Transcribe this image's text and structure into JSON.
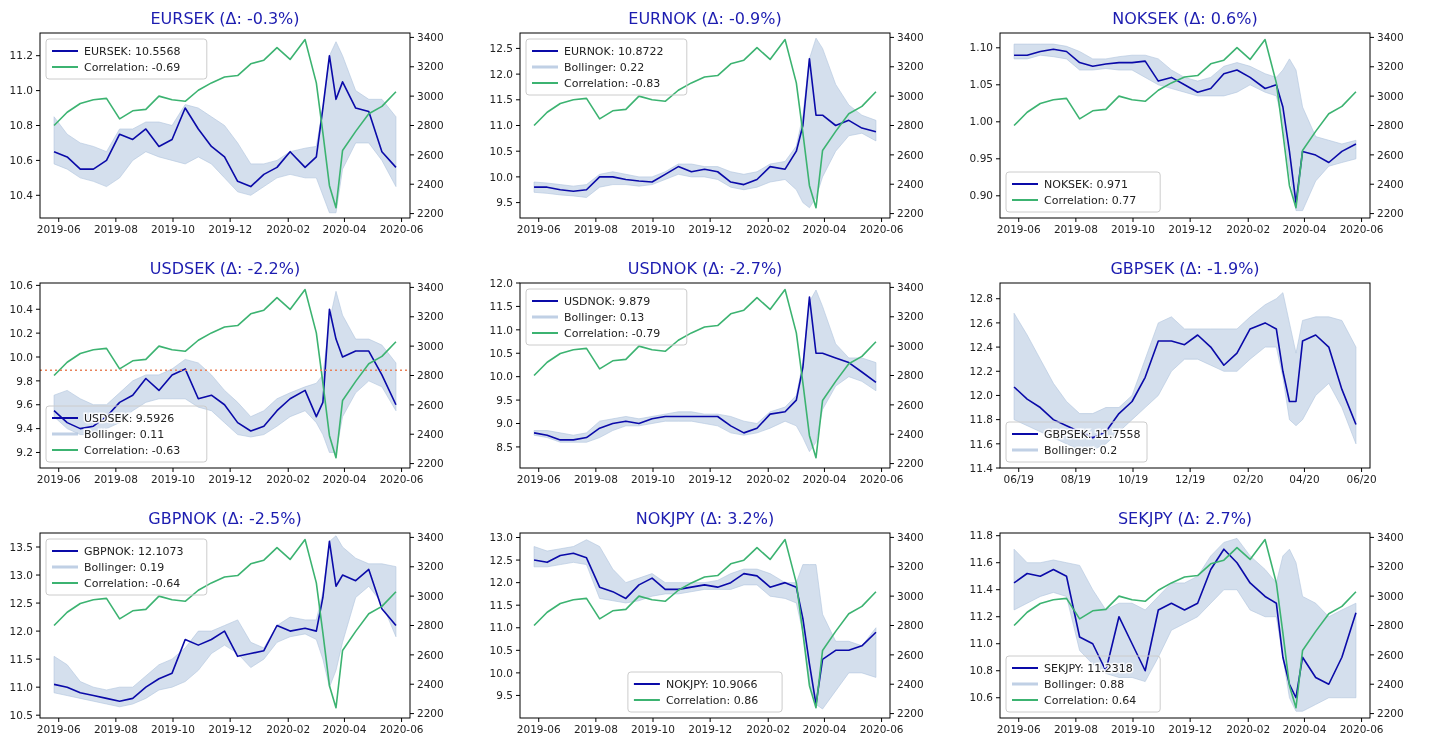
{
  "chart_data": [
    {
      "type": "line",
      "title": "EURSEK (Δ: -0.3%)",
      "legend": "upper left",
      "xlim": [
        "2019-05-12",
        "2020-06-10"
      ],
      "ylim": [
        10.27,
        11.33
      ],
      "yticks": [
        10.4,
        10.6,
        10.8,
        {
          "value": 11.0,
          "label": "11.0"
        },
        11.2
      ],
      "y2lim": [
        2170,
        3430
      ],
      "y2ticks": [
        2200,
        2400,
        2600,
        2800,
        3000,
        3200,
        3400
      ],
      "xticks": [
        {
          "value": "2019-06-01",
          "label": "2019-06"
        },
        {
          "value": "2019-08-01",
          "label": "2019-08"
        },
        {
          "value": "2019-10-01",
          "label": "2019-10"
        },
        {
          "value": "2019-12-01",
          "label": "2019-12"
        },
        {
          "value": "2020-02-01",
          "label": "2020-02"
        },
        {
          "value": "2020-04-01",
          "label": "2020-04"
        },
        {
          "value": "2020-06-01",
          "label": "2020-06"
        }
      ],
      "x": [
        "2019-05-27",
        "2019-06-10",
        "2019-06-24",
        "2019-07-08",
        "2019-07-22",
        "2019-08-05",
        "2019-08-19",
        "2019-09-02",
        "2019-09-16",
        "2019-09-30",
        "2019-10-14",
        "2019-10-28",
        "2019-11-11",
        "2019-11-25",
        "2019-12-09",
        "2019-12-23",
        "2020-01-06",
        "2020-01-20",
        "2020-02-03",
        "2020-02-19",
        "2020-03-02",
        "2020-03-09",
        "2020-03-16",
        "2020-03-23",
        "2020-03-30",
        "2020-04-13",
        "2020-04-27",
        "2020-05-11",
        "2020-05-26"
      ],
      "series": [
        {
          "name": "EURSEK: 10.5568",
          "color": "#0a0aa8",
          "values": [
            10.65,
            10.62,
            10.55,
            10.55,
            10.6,
            10.75,
            10.72,
            10.78,
            10.68,
            10.72,
            10.9,
            10.78,
            10.68,
            10.62,
            10.48,
            10.45,
            10.52,
            10.56,
            10.65,
            10.56,
            10.62,
            10.9,
            11.2,
            10.95,
            11.05,
            10.9,
            10.88,
            10.65,
            10.56
          ],
          "lower": [
            10.58,
            10.55,
            10.5,
            10.48,
            10.45,
            10.5,
            10.6,
            10.65,
            10.62,
            10.6,
            10.58,
            10.62,
            10.58,
            10.5,
            10.42,
            10.4,
            10.45,
            10.5,
            10.52,
            10.5,
            10.5,
            10.4,
            10.3,
            10.3,
            10.55,
            10.7,
            10.7,
            10.6,
            10.45
          ],
          "upper": [
            10.85,
            10.75,
            10.7,
            10.68,
            10.65,
            10.78,
            10.78,
            10.82,
            10.82,
            10.8,
            10.92,
            10.9,
            10.85,
            10.8,
            10.7,
            10.58,
            10.58,
            10.6,
            10.65,
            10.67,
            10.68,
            10.9,
            11.2,
            11.28,
            11.2,
            11.0,
            10.95,
            10.95,
            10.85
          ]
        },
        {
          "name": "Correlation: -0.69",
          "color": "#3cb371",
          "axis": "y2",
          "values": [
            2800,
            2890,
            2950,
            2975,
            2985,
            2845,
            2900,
            2910,
            3000,
            2975,
            2965,
            3040,
            3090,
            3130,
            3140,
            3220,
            3245,
            3330,
            3250,
            3385,
            3090,
            2750,
            2390,
            2240,
            2630,
            2760,
            2880,
            2930,
            3030
          ]
        }
      ]
    },
    {
      "type": "line",
      "title": "EURNOK (Δ: -0.9%)",
      "legend": "upper left",
      "annotations": [
        "Bollinger: 0.22"
      ],
      "xlim": [
        "2019-05-12",
        "2020-06-10"
      ],
      "ylim": [
        9.2,
        12.8
      ],
      "yticks": [
        9.5,
        {
          "value": 10.0,
          "label": "10.0"
        },
        10.5,
        {
          "value": 11.0,
          "label": "11.0"
        },
        11.5,
        {
          "value": 12.0,
          "label": "12.0"
        },
        12.5
      ],
      "y2lim": [
        2170,
        3430
      ],
      "y2ticks": [
        2200,
        2400,
        2600,
        2800,
        3000,
        3200,
        3400
      ],
      "xticks": [
        {
          "value": "2019-06-01",
          "label": "2019-06"
        },
        {
          "value": "2019-08-01",
          "label": "2019-08"
        },
        {
          "value": "2019-10-01",
          "label": "2019-10"
        },
        {
          "value": "2019-12-01",
          "label": "2019-12"
        },
        {
          "value": "2020-02-01",
          "label": "2020-02"
        },
        {
          "value": "2020-04-01",
          "label": "2020-04"
        },
        {
          "value": "2020-06-01",
          "label": "2020-06"
        }
      ],
      "x": [
        "2019-05-27",
        "2019-06-10",
        "2019-06-24",
        "2019-07-08",
        "2019-07-22",
        "2019-08-05",
        "2019-08-19",
        "2019-09-02",
        "2019-09-16",
        "2019-09-30",
        "2019-10-14",
        "2019-10-28",
        "2019-11-11",
        "2019-11-25",
        "2019-12-09",
        "2019-12-23",
        "2020-01-06",
        "2020-01-20",
        "2020-02-03",
        "2020-02-19",
        "2020-03-02",
        "2020-03-09",
        "2020-03-16",
        "2020-03-23",
        "2020-03-30",
        "2020-04-13",
        "2020-04-27",
        "2020-05-11",
        "2020-05-26"
      ],
      "series": [
        {
          "name": "EURNOK: 10.8722",
          "color": "#0a0aa8",
          "values": [
            9.8,
            9.8,
            9.75,
            9.72,
            9.75,
            10.0,
            10.0,
            9.95,
            9.92,
            9.9,
            10.05,
            10.2,
            10.1,
            10.15,
            10.1,
            9.9,
            9.85,
            9.95,
            10.2,
            10.15,
            10.5,
            11.0,
            12.3,
            11.2,
            11.2,
            11.0,
            11.1,
            10.95,
            10.88
          ],
          "lower": [
            9.7,
            9.68,
            9.65,
            9.63,
            9.6,
            9.8,
            9.85,
            9.85,
            9.82,
            9.85,
            9.95,
            10.05,
            10.0,
            10.0,
            9.95,
            9.8,
            9.75,
            9.8,
            9.9,
            9.95,
            9.75,
            9.5,
            9.4,
            9.6,
            10.0,
            10.5,
            10.8,
            10.85,
            10.7
          ],
          "upper": [
            9.9,
            9.88,
            9.85,
            9.82,
            9.85,
            10.05,
            10.1,
            10.05,
            10.0,
            10.0,
            10.1,
            10.25,
            10.25,
            10.2,
            10.2,
            10.1,
            10.05,
            10.1,
            10.25,
            10.3,
            10.6,
            11.2,
            12.3,
            12.7,
            12.5,
            11.8,
            11.4,
            11.2,
            11.1
          ]
        },
        {
          "name": "Correlation: -0.83",
          "color": "#3cb371",
          "axis": "y2",
          "values": [
            2800,
            2890,
            2950,
            2975,
            2985,
            2845,
            2900,
            2910,
            3000,
            2975,
            2965,
            3040,
            3090,
            3130,
            3140,
            3220,
            3245,
            3330,
            3250,
            3385,
            3090,
            2750,
            2390,
            2240,
            2630,
            2760,
            2880,
            2930,
            3030
          ]
        }
      ]
    },
    {
      "type": "line",
      "title": "NOKSEK (Δ: 0.6%)",
      "legend": "lower left",
      "xlim": [
        "2019-05-12",
        "2020-06-10"
      ],
      "ylim": [
        0.87,
        1.12
      ],
      "yticks": [
        {
          "value": 0.9,
          "label": "0.90"
        },
        0.95,
        {
          "value": 1.0,
          "label": "1.00"
        },
        1.05,
        {
          "value": 1.1,
          "label": "1.10"
        }
      ],
      "y2lim": [
        2170,
        3430
      ],
      "y2ticks": [
        2200,
        2400,
        2600,
        2800,
        3000,
        3200,
        3400
      ],
      "xticks": [
        {
          "value": "2019-06-01",
          "label": "2019-06"
        },
        {
          "value": "2019-08-01",
          "label": "2019-08"
        },
        {
          "value": "2019-10-01",
          "label": "2019-10"
        },
        {
          "value": "2019-12-01",
          "label": "2019-12"
        },
        {
          "value": "2020-02-01",
          "label": "2020-02"
        },
        {
          "value": "2020-04-01",
          "label": "2020-04"
        },
        {
          "value": "2020-06-01",
          "label": "2020-06"
        }
      ],
      "x": [
        "2019-05-27",
        "2019-06-10",
        "2019-06-24",
        "2019-07-08",
        "2019-07-22",
        "2019-08-05",
        "2019-08-19",
        "2019-09-02",
        "2019-09-16",
        "2019-09-30",
        "2019-10-14",
        "2019-10-28",
        "2019-11-11",
        "2019-11-25",
        "2019-12-09",
        "2019-12-23",
        "2020-01-06",
        "2020-01-20",
        "2020-02-03",
        "2020-02-19",
        "2020-03-02",
        "2020-03-09",
        "2020-03-16",
        "2020-03-23",
        "2020-03-30",
        "2020-04-13",
        "2020-04-27",
        "2020-05-11",
        "2020-05-26"
      ],
      "series": [
        {
          "name": "NOKSEK: 0.971",
          "color": "#0a0aa8",
          "values": [
            1.09,
            1.09,
            1.095,
            1.098,
            1.095,
            1.08,
            1.075,
            1.078,
            1.08,
            1.08,
            1.082,
            1.055,
            1.06,
            1.05,
            1.04,
            1.045,
            1.065,
            1.07,
            1.06,
            1.045,
            1.05,
            1.02,
            0.96,
            0.89,
            0.96,
            0.955,
            0.945,
            0.96,
            0.97
          ],
          "lower": [
            1.085,
            1.085,
            1.09,
            1.088,
            1.085,
            1.07,
            1.07,
            1.072,
            1.07,
            1.07,
            1.06,
            1.05,
            1.045,
            1.04,
            1.035,
            1.035,
            1.035,
            1.04,
            1.05,
            1.04,
            1.035,
            1.0,
            0.93,
            0.88,
            0.88,
            0.92,
            0.94,
            0.945,
            0.95
          ],
          "upper": [
            1.105,
            1.105,
            1.105,
            1.105,
            1.102,
            1.095,
            1.085,
            1.085,
            1.088,
            1.09,
            1.09,
            1.085,
            1.07,
            1.06,
            1.055,
            1.06,
            1.075,
            1.08,
            1.075,
            1.065,
            1.06,
            1.07,
            1.085,
            1.07,
            1.02,
            0.98,
            0.975,
            0.97,
            0.975
          ]
        },
        {
          "name": "Correlation: 0.77",
          "color": "#3cb371",
          "axis": "y2",
          "values": [
            2800,
            2890,
            2950,
            2975,
            2985,
            2845,
            2900,
            2910,
            3000,
            2975,
            2965,
            3040,
            3090,
            3130,
            3140,
            3220,
            3245,
            3330,
            3250,
            3385,
            3090,
            2750,
            2390,
            2240,
            2630,
            2760,
            2880,
            2930,
            3030
          ]
        }
      ]
    },
    {
      "type": "line",
      "title": "USDSEK (Δ: -2.2%)",
      "legend": "lower left",
      "annotations": [
        "Bollinger: 0.11"
      ],
      "xlim": [
        "2019-05-12",
        "2020-06-10"
      ],
      "ylim": [
        9.07,
        10.62
      ],
      "yticks": [
        9.2,
        9.4,
        9.6,
        9.8,
        {
          "value": 10.0,
          "label": "10.0"
        },
        10.2,
        10.4,
        10.6
      ],
      "y2lim": [
        2170,
        3430
      ],
      "y2ticks": [
        2200,
        2400,
        2600,
        2800,
        3000,
        3200,
        3400
      ],
      "ref_lines": [
        {
          "axis": "y",
          "value": 9.89,
          "color": "#e8825a",
          "line_style": "dotted"
        }
      ],
      "xticks": [
        {
          "value": "2019-06-01",
          "label": "2019-06"
        },
        {
          "value": "2019-08-01",
          "label": "2019-08"
        },
        {
          "value": "2019-10-01",
          "label": "2019-10"
        },
        {
          "value": "2019-12-01",
          "label": "2019-12"
        },
        {
          "value": "2020-02-01",
          "label": "2020-02"
        },
        {
          "value": "2020-04-01",
          "label": "2020-04"
        },
        {
          "value": "2020-06-01",
          "label": "2020-06"
        }
      ],
      "x": [
        "2019-05-27",
        "2019-06-10",
        "2019-06-24",
        "2019-07-08",
        "2019-07-22",
        "2019-08-05",
        "2019-08-19",
        "2019-09-02",
        "2019-09-16",
        "2019-09-30",
        "2019-10-14",
        "2019-10-28",
        "2019-11-11",
        "2019-11-25",
        "2019-12-09",
        "2019-12-23",
        "2020-01-06",
        "2020-01-20",
        "2020-02-03",
        "2020-02-19",
        "2020-03-02",
        "2020-03-09",
        "2020-03-16",
        "2020-03-23",
        "2020-03-30",
        "2020-04-13",
        "2020-04-27",
        "2020-05-11",
        "2020-05-26"
      ],
      "series": [
        {
          "name": "USDSEK: 9.5926",
          "color": "#0a0aa8",
          "values": [
            9.55,
            9.45,
            9.4,
            9.42,
            9.5,
            9.62,
            9.68,
            9.82,
            9.72,
            9.85,
            9.9,
            9.65,
            9.68,
            9.6,
            9.45,
            9.38,
            9.42,
            9.55,
            9.65,
            9.72,
            9.5,
            9.62,
            10.4,
            10.15,
            10.0,
            10.05,
            10.05,
            9.85,
            9.6
          ],
          "lower": [
            9.5,
            9.4,
            9.35,
            9.35,
            9.4,
            9.45,
            9.55,
            9.62,
            9.65,
            9.65,
            9.65,
            9.58,
            9.55,
            9.45,
            9.35,
            9.33,
            9.35,
            9.42,
            9.5,
            9.55,
            9.45,
            9.35,
            9.2,
            9.2,
            9.5,
            9.7,
            9.8,
            9.75,
            9.55
          ],
          "upper": [
            9.68,
            9.72,
            9.65,
            9.6,
            9.6,
            9.7,
            9.8,
            9.85,
            9.85,
            9.9,
            9.98,
            9.95,
            9.85,
            9.72,
            9.62,
            9.5,
            9.55,
            9.65,
            9.7,
            9.75,
            9.78,
            9.85,
            10.3,
            10.55,
            10.35,
            10.15,
            10.15,
            10.1,
            9.95
          ]
        },
        {
          "name": "Correlation: -0.63",
          "color": "#3cb371",
          "axis": "y2",
          "values": [
            2800,
            2890,
            2950,
            2975,
            2985,
            2845,
            2900,
            2910,
            3000,
            2975,
            2965,
            3040,
            3090,
            3130,
            3140,
            3220,
            3245,
            3330,
            3250,
            3385,
            3090,
            2750,
            2390,
            2240,
            2630,
            2760,
            2880,
            2930,
            3030
          ]
        }
      ]
    },
    {
      "type": "line",
      "title": "USDNOK (Δ: -2.7%)",
      "legend": "upper left",
      "annotations": [
        "Bollinger: 0.13"
      ],
      "xlim": [
        "2019-05-12",
        "2020-06-10"
      ],
      "ylim": [
        8.05,
        12.0
      ],
      "yticks": [
        8.5,
        {
          "value": 9.0,
          "label": "9.0"
        },
        9.5,
        {
          "value": 10.0,
          "label": "10.0"
        },
        10.5,
        {
          "value": 11.0,
          "label": "11.0"
        },
        11.5,
        {
          "value": 12.0,
          "label": "12.0"
        }
      ],
      "y2lim": [
        2170,
        3430
      ],
      "y2ticks": [
        2200,
        2400,
        2600,
        2800,
        3000,
        3200,
        3400
      ],
      "xticks": [
        {
          "value": "2019-06-01",
          "label": "2019-06"
        },
        {
          "value": "2019-08-01",
          "label": "2019-08"
        },
        {
          "value": "2019-10-01",
          "label": "2019-10"
        },
        {
          "value": "2019-12-01",
          "label": "2019-12"
        },
        {
          "value": "2020-02-01",
          "label": "2020-02"
        },
        {
          "value": "2020-04-01",
          "label": "2020-04"
        },
        {
          "value": "2020-06-01",
          "label": "2020-06"
        }
      ],
      "x": [
        "2019-05-27",
        "2019-06-10",
        "2019-06-24",
        "2019-07-08",
        "2019-07-22",
        "2019-08-05",
        "2019-08-19",
        "2019-09-02",
        "2019-09-16",
        "2019-09-30",
        "2019-10-14",
        "2019-10-28",
        "2019-11-11",
        "2019-11-25",
        "2019-12-09",
        "2019-12-23",
        "2020-01-06",
        "2020-01-20",
        "2020-02-03",
        "2020-02-19",
        "2020-03-02",
        "2020-03-09",
        "2020-03-16",
        "2020-03-23",
        "2020-03-30",
        "2020-04-13",
        "2020-04-27",
        "2020-05-11",
        "2020-05-26"
      ],
      "series": [
        {
          "name": "USDNOK: 9.879",
          "color": "#0a0aa8",
          "values": [
            8.8,
            8.75,
            8.65,
            8.65,
            8.7,
            8.9,
            9.0,
            9.05,
            9.0,
            9.1,
            9.15,
            9.15,
            9.15,
            9.15,
            9.15,
            8.95,
            8.8,
            8.9,
            9.2,
            9.25,
            9.5,
            10.2,
            11.7,
            10.5,
            10.5,
            10.4,
            10.3,
            10.1,
            9.88
          ],
          "lower": [
            8.75,
            8.7,
            8.6,
            8.6,
            8.6,
            8.7,
            8.85,
            8.95,
            8.95,
            9.0,
            9.05,
            9.05,
            9.05,
            9.0,
            8.95,
            8.8,
            8.75,
            8.8,
            8.9,
            9.05,
            8.95,
            8.7,
            8.4,
            8.6,
            9.3,
            9.8,
            10.0,
            9.9,
            9.7
          ],
          "upper": [
            8.85,
            8.85,
            8.8,
            8.75,
            8.8,
            9.05,
            9.1,
            9.15,
            9.1,
            9.15,
            9.2,
            9.25,
            9.25,
            9.2,
            9.2,
            9.15,
            9.05,
            9.0,
            9.25,
            9.35,
            9.6,
            10.3,
            11.6,
            11.85,
            11.5,
            10.7,
            10.4,
            10.4,
            10.3
          ]
        },
        {
          "name": "Correlation: -0.79",
          "color": "#3cb371",
          "axis": "y2",
          "values": [
            2800,
            2890,
            2950,
            2975,
            2985,
            2845,
            2900,
            2910,
            3000,
            2975,
            2965,
            3040,
            3090,
            3130,
            3140,
            3220,
            3245,
            3330,
            3250,
            3385,
            3090,
            2750,
            2390,
            2240,
            2630,
            2760,
            2880,
            2930,
            3030
          ]
        }
      ]
    },
    {
      "type": "line",
      "title": "GBPSEK (Δ: -1.9%)",
      "legend": "lower left",
      "annotations": [
        "Bollinger: 0.2"
      ],
      "xlim": [
        "2019-05-12",
        "2020-06-10"
      ],
      "ylim": [
        11.4,
        12.93
      ],
      "yticks": [
        11.4,
        11.6,
        11.8,
        {
          "value": 12.0,
          "label": "12.0"
        },
        12.2,
        12.4,
        12.6,
        12.8
      ],
      "xticks": [
        {
          "value": "2019-06-01",
          "label": "06/19"
        },
        {
          "value": "2019-08-01",
          "label": "08/19"
        },
        {
          "value": "2019-10-01",
          "label": "10/19"
        },
        {
          "value": "2019-12-01",
          "label": "12/19"
        },
        {
          "value": "2020-02-01",
          "label": "02/20"
        },
        {
          "value": "2020-04-01",
          "label": "04/20"
        },
        {
          "value": "2020-06-01",
          "label": "06/20"
        }
      ],
      "x": [
        "2019-05-27",
        "2019-06-10",
        "2019-06-24",
        "2019-07-08",
        "2019-07-22",
        "2019-08-05",
        "2019-08-19",
        "2019-09-02",
        "2019-09-16",
        "2019-09-30",
        "2019-10-14",
        "2019-10-28",
        "2019-11-11",
        "2019-11-25",
        "2019-12-09",
        "2019-12-23",
        "2020-01-06",
        "2020-01-20",
        "2020-02-03",
        "2020-02-19",
        "2020-03-02",
        "2020-03-09",
        "2020-03-16",
        "2020-03-23",
        "2020-03-30",
        "2020-04-13",
        "2020-04-27",
        "2020-05-11",
        "2020-05-26"
      ],
      "series": [
        {
          "name": "GBPSEK: 11.7558",
          "color": "#0a0aa8",
          "values": [
            12.07,
            11.97,
            11.9,
            11.8,
            11.75,
            11.7,
            11.65,
            11.7,
            11.85,
            11.95,
            12.15,
            12.45,
            12.45,
            12.42,
            12.5,
            12.4,
            12.25,
            12.35,
            12.55,
            12.6,
            12.55,
            12.2,
            11.95,
            11.95,
            12.45,
            12.5,
            12.4,
            12.05,
            11.76
          ],
          "lower": [
            11.8,
            11.75,
            11.7,
            11.65,
            11.6,
            11.55,
            11.55,
            11.6,
            11.7,
            11.8,
            11.9,
            12.0,
            12.2,
            12.3,
            12.3,
            12.25,
            12.2,
            12.2,
            12.3,
            12.4,
            12.4,
            12.15,
            11.8,
            11.75,
            11.8,
            12.0,
            12.1,
            11.9,
            11.6
          ],
          "upper": [
            12.68,
            12.5,
            12.3,
            12.1,
            11.95,
            11.85,
            11.85,
            11.9,
            11.9,
            12.0,
            12.3,
            12.6,
            12.65,
            12.55,
            12.55,
            12.55,
            12.55,
            12.55,
            12.65,
            12.75,
            12.8,
            12.85,
            12.6,
            12.35,
            12.62,
            12.65,
            12.65,
            12.62,
            12.4
          ]
        }
      ]
    },
    {
      "type": "line",
      "title": "GBPNOK (Δ: -2.5%)",
      "legend": "upper left",
      "annotations": [
        "Bollinger: 0.19"
      ],
      "xlim": [
        "2019-05-12",
        "2020-06-10"
      ],
      "ylim": [
        10.45,
        13.75
      ],
      "yticks": [
        10.5,
        {
          "value": 11.0,
          "label": "11.0"
        },
        11.5,
        {
          "value": 12.0,
          "label": "12.0"
        },
        12.5,
        {
          "value": 13.0,
          "label": "13.0"
        },
        13.5
      ],
      "y2lim": [
        2170,
        3430
      ],
      "y2ticks": [
        2200,
        2400,
        2600,
        2800,
        3000,
        3200,
        3400
      ],
      "xticks": [
        {
          "value": "2019-06-01",
          "label": "2019-06"
        },
        {
          "value": "2019-08-01",
          "label": "2019-08"
        },
        {
          "value": "2019-10-01",
          "label": "2019-10"
        },
        {
          "value": "2019-12-01",
          "label": "2019-12"
        },
        {
          "value": "2020-02-01",
          "label": "2020-02"
        },
        {
          "value": "2020-04-01",
          "label": "2020-04"
        },
        {
          "value": "2020-06-01",
          "label": "2020-06"
        }
      ],
      "x": [
        "2019-05-27",
        "2019-06-10",
        "2019-06-24",
        "2019-07-08",
        "2019-07-22",
        "2019-08-05",
        "2019-08-19",
        "2019-09-02",
        "2019-09-16",
        "2019-09-30",
        "2019-10-14",
        "2019-10-28",
        "2019-11-11",
        "2019-11-25",
        "2019-12-09",
        "2019-12-23",
        "2020-01-06",
        "2020-01-20",
        "2020-02-03",
        "2020-02-19",
        "2020-03-02",
        "2020-03-09",
        "2020-03-16",
        "2020-03-23",
        "2020-03-30",
        "2020-04-13",
        "2020-04-27",
        "2020-05-11",
        "2020-05-26"
      ],
      "series": [
        {
          "name": "GBPNOK: 12.1073",
          "color": "#0a0aa8",
          "values": [
            11.05,
            11.0,
            10.9,
            10.85,
            10.8,
            10.75,
            10.8,
            11.0,
            11.15,
            11.25,
            11.85,
            11.75,
            11.85,
            12.0,
            11.55,
            11.6,
            11.65,
            12.1,
            12.0,
            12.05,
            12.0,
            12.6,
            13.6,
            12.8,
            13.0,
            12.9,
            13.1,
            12.4,
            12.1
          ],
          "lower": [
            10.9,
            10.85,
            10.8,
            10.75,
            10.7,
            10.65,
            10.7,
            10.8,
            10.95,
            11.0,
            11.1,
            11.3,
            11.6,
            11.75,
            11.6,
            11.35,
            11.5,
            11.8,
            11.9,
            11.95,
            11.85,
            11.5,
            11.0,
            11.3,
            11.8,
            12.6,
            12.8,
            12.5,
            11.9
          ],
          "upper": [
            11.55,
            11.4,
            11.1,
            11.0,
            10.95,
            11.0,
            11.0,
            11.2,
            11.4,
            11.5,
            11.7,
            12.0,
            12.0,
            12.1,
            12.2,
            11.8,
            11.7,
            12.1,
            12.25,
            12.2,
            12.2,
            12.7,
            13.6,
            13.7,
            13.5,
            13.3,
            13.2,
            13.2,
            13.15
          ]
        },
        {
          "name": "Correlation: -0.64",
          "color": "#3cb371",
          "axis": "y2",
          "values": [
            2800,
            2890,
            2950,
            2975,
            2985,
            2845,
            2900,
            2910,
            3000,
            2975,
            2965,
            3040,
            3090,
            3130,
            3140,
            3220,
            3245,
            3330,
            3250,
            3385,
            3090,
            2750,
            2390,
            2240,
            2630,
            2760,
            2880,
            2930,
            3030
          ]
        }
      ]
    },
    {
      "type": "line",
      "title": "NOKJPY (Δ: 3.2%)",
      "legend": "lower center",
      "xlim": [
        "2019-05-12",
        "2020-06-10"
      ],
      "ylim": [
        9.0,
        13.1
      ],
      "yticks": [
        9.5,
        {
          "value": 10.0,
          "label": "10.0"
        },
        10.5,
        {
          "value": 11.0,
          "label": "11.0"
        },
        11.5,
        {
          "value": 12.0,
          "label": "12.0"
        },
        12.5,
        {
          "value": 13.0,
          "label": "13.0"
        }
      ],
      "y2lim": [
        2170,
        3430
      ],
      "y2ticks": [
        2200,
        2400,
        2600,
        2800,
        3000,
        3200,
        3400
      ],
      "xticks": [
        {
          "value": "2019-06-01",
          "label": "2019-06"
        },
        {
          "value": "2019-08-01",
          "label": "2019-08"
        },
        {
          "value": "2019-10-01",
          "label": "2019-10"
        },
        {
          "value": "2019-12-01",
          "label": "2019-12"
        },
        {
          "value": "2020-02-01",
          "label": "2020-02"
        },
        {
          "value": "2020-04-01",
          "label": "2020-04"
        },
        {
          "value": "2020-06-01",
          "label": "2020-06"
        }
      ],
      "x": [
        "2019-05-27",
        "2019-06-10",
        "2019-06-24",
        "2019-07-08",
        "2019-07-22",
        "2019-08-05",
        "2019-08-19",
        "2019-09-02",
        "2019-09-16",
        "2019-09-30",
        "2019-10-14",
        "2019-10-28",
        "2019-11-11",
        "2019-11-25",
        "2019-12-09",
        "2019-12-23",
        "2020-01-06",
        "2020-01-20",
        "2020-02-03",
        "2020-02-19",
        "2020-03-02",
        "2020-03-09",
        "2020-03-16",
        "2020-03-23",
        "2020-03-30",
        "2020-04-13",
        "2020-04-27",
        "2020-05-11",
        "2020-05-26"
      ],
      "series": [
        {
          "name": "NOKJPY: 10.9066",
          "color": "#0a0aa8",
          "values": [
            12.5,
            12.45,
            12.6,
            12.65,
            12.55,
            11.9,
            11.8,
            11.65,
            11.95,
            12.1,
            11.85,
            11.85,
            11.9,
            11.95,
            11.9,
            12.0,
            12.2,
            12.15,
            11.9,
            12.0,
            11.9,
            11.2,
            10.2,
            9.3,
            10.3,
            10.5,
            10.5,
            10.6,
            10.9
          ],
          "lower": [
            12.35,
            12.35,
            12.4,
            12.45,
            12.4,
            11.65,
            11.6,
            11.55,
            11.6,
            11.7,
            11.75,
            11.75,
            11.8,
            11.85,
            11.85,
            11.85,
            11.95,
            11.95,
            11.7,
            11.65,
            11.55,
            10.9,
            9.8,
            9.3,
            9.2,
            9.6,
            10.0,
            10.0,
            9.9
          ],
          "upper": [
            12.8,
            12.7,
            12.75,
            12.8,
            12.95,
            12.8,
            12.3,
            12.0,
            12.1,
            12.2,
            12.0,
            12.0,
            12.0,
            12.0,
            12.05,
            12.2,
            12.3,
            12.3,
            12.2,
            12.0,
            12.0,
            12.4,
            12.4,
            12.4,
            11.3,
            10.7,
            10.7,
            10.6,
            11.0
          ]
        },
        {
          "name": "Correlation: 0.86",
          "color": "#3cb371",
          "axis": "y2",
          "values": [
            2800,
            2890,
            2950,
            2975,
            2985,
            2845,
            2900,
            2910,
            3000,
            2975,
            2965,
            3040,
            3090,
            3130,
            3140,
            3220,
            3245,
            3330,
            3250,
            3385,
            3090,
            2750,
            2390,
            2240,
            2630,
            2760,
            2880,
            2930,
            3030
          ]
        }
      ]
    },
    {
      "type": "line",
      "title": "SEKJPY (Δ: 2.7%)",
      "legend": "lower left",
      "annotations": [
        "Bollinger: 0.88"
      ],
      "xlim": [
        "2019-05-12",
        "2020-06-10"
      ],
      "ylim": [
        10.45,
        11.82
      ],
      "yticks": [
        10.6,
        10.8,
        {
          "value": 11.0,
          "label": "11.0"
        },
        11.2,
        11.4,
        11.6,
        11.8
      ],
      "y2lim": [
        2170,
        3430
      ],
      "y2ticks": [
        2200,
        2400,
        2600,
        2800,
        3000,
        3200,
        3400
      ],
      "xticks": [
        {
          "value": "2019-06-01",
          "label": "2019-06"
        },
        {
          "value": "2019-08-01",
          "label": "2019-08"
        },
        {
          "value": "2019-10-01",
          "label": "2019-10"
        },
        {
          "value": "2019-12-01",
          "label": "2019-12"
        },
        {
          "value": "2020-02-01",
          "label": "2020-02"
        },
        {
          "value": "2020-04-01",
          "label": "2020-04"
        },
        {
          "value": "2020-06-01",
          "label": "2020-06"
        }
      ],
      "x": [
        "2019-05-27",
        "2019-06-10",
        "2019-06-24",
        "2019-07-08",
        "2019-07-22",
        "2019-08-05",
        "2019-08-19",
        "2019-09-02",
        "2019-09-16",
        "2019-09-30",
        "2019-10-14",
        "2019-10-28",
        "2019-11-11",
        "2019-11-25",
        "2019-12-09",
        "2019-12-23",
        "2020-01-06",
        "2020-01-20",
        "2020-02-03",
        "2020-02-19",
        "2020-03-02",
        "2020-03-09",
        "2020-03-16",
        "2020-03-23",
        "2020-03-30",
        "2020-04-13",
        "2020-04-27",
        "2020-05-11",
        "2020-05-26"
      ],
      "series": [
        {
          "name": "SEKJPY: 11.2318",
          "color": "#0a0aa8",
          "values": [
            11.45,
            11.52,
            11.5,
            11.55,
            11.5,
            11.05,
            11.0,
            10.8,
            11.2,
            11.0,
            10.8,
            11.25,
            11.3,
            11.25,
            11.3,
            11.55,
            11.7,
            11.6,
            11.45,
            11.35,
            11.3,
            10.9,
            10.7,
            10.6,
            10.9,
            10.75,
            10.7,
            10.9,
            11.23
          ],
          "lower": [
            11.25,
            11.3,
            11.35,
            11.38,
            11.35,
            10.95,
            10.85,
            10.78,
            10.75,
            10.75,
            10.72,
            10.9,
            11.1,
            11.15,
            11.2,
            11.3,
            11.4,
            11.4,
            11.25,
            11.2,
            11.2,
            10.9,
            10.6,
            10.5,
            10.5,
            10.55,
            10.6,
            10.6,
            10.6
          ],
          "upper": [
            11.7,
            11.6,
            11.6,
            11.62,
            11.6,
            11.58,
            11.4,
            11.25,
            11.3,
            11.3,
            11.25,
            11.35,
            11.45,
            11.45,
            11.5,
            11.65,
            11.75,
            11.78,
            11.65,
            11.55,
            11.45,
            11.65,
            11.7,
            11.6,
            11.35,
            11.3,
            11.2,
            11.25,
            11.3
          ]
        },
        {
          "name": "Correlation: 0.64",
          "color": "#3cb371",
          "axis": "y2",
          "values": [
            2800,
            2890,
            2950,
            2975,
            2985,
            2845,
            2900,
            2910,
            3000,
            2975,
            2965,
            3040,
            3090,
            3130,
            3140,
            3220,
            3245,
            3330,
            3250,
            3385,
            3090,
            2750,
            2390,
            2240,
            2630,
            2760,
            2880,
            2930,
            3030
          ]
        }
      ]
    }
  ]
}
